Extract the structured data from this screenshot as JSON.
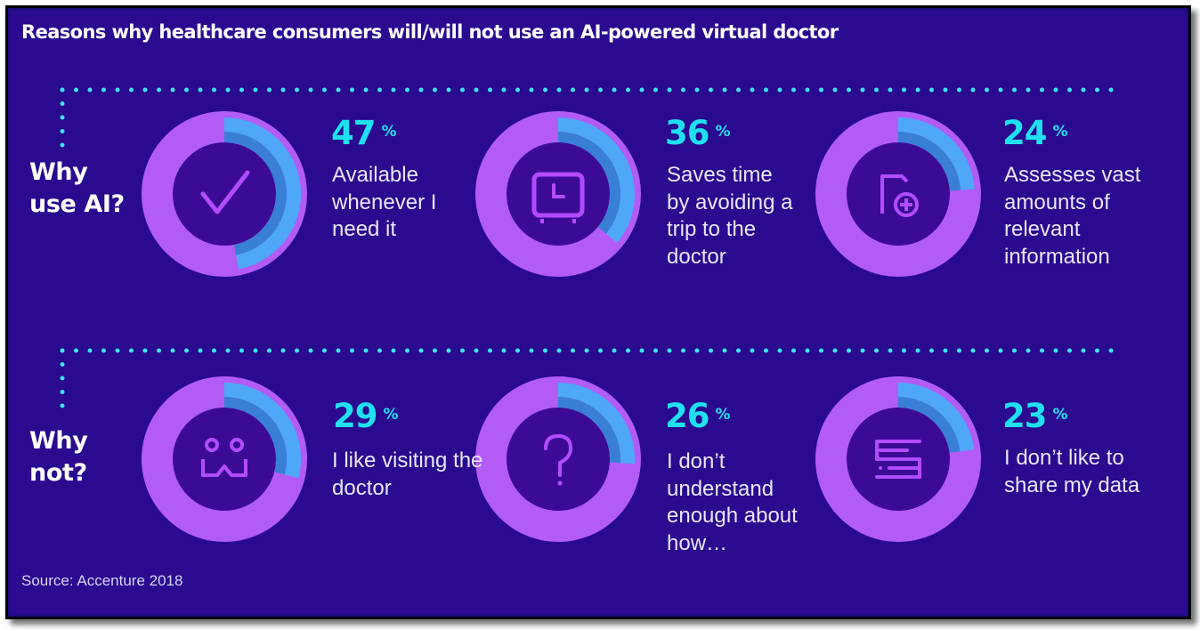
{
  "title": "Reasons why healthcare consumers will/will not use an AI-powered virtual doctor",
  "source": "Source: Accenture 2018",
  "colors": {
    "background": "#2a0a8f",
    "ring": "#b25cf5",
    "ring_hole": "#3c0b95",
    "fill_outer": "#4ea8f7",
    "fill_inner": "#3a7fd6",
    "icon": "#b24cff",
    "percent": "#20e0f0",
    "dots": "#3fe3f0"
  },
  "rows": [
    {
      "label": "Why\nuse AI?"
    },
    {
      "label": "Why\nnot?"
    }
  ],
  "chart_data": {
    "type": "pie",
    "title": "Reasons why healthcare consumers will/will not use an AI-powered virtual doctor",
    "unit": "%",
    "groups": [
      {
        "name": "Why use AI?",
        "items": [
          {
            "value": 47,
            "label": "Available whenever I need it",
            "icon": "checkmark-icon"
          },
          {
            "value": 36,
            "label": "Saves time by avoiding a trip to the doctor",
            "icon": "clock-icon"
          },
          {
            "value": 24,
            "label": "Assesses vast amounts of relevant information",
            "icon": "medical-document-icon"
          }
        ]
      },
      {
        "name": "Why not?",
        "items": [
          {
            "value": 29,
            "label": "I like visiting the doctor",
            "icon": "people-icon"
          },
          {
            "value": 26,
            "label": "I don’t understand enough about how…",
            "icon": "question-icon"
          },
          {
            "value": 23,
            "label": "I don’t like to share my data",
            "icon": "data-server-icon"
          }
        ]
      }
    ]
  }
}
